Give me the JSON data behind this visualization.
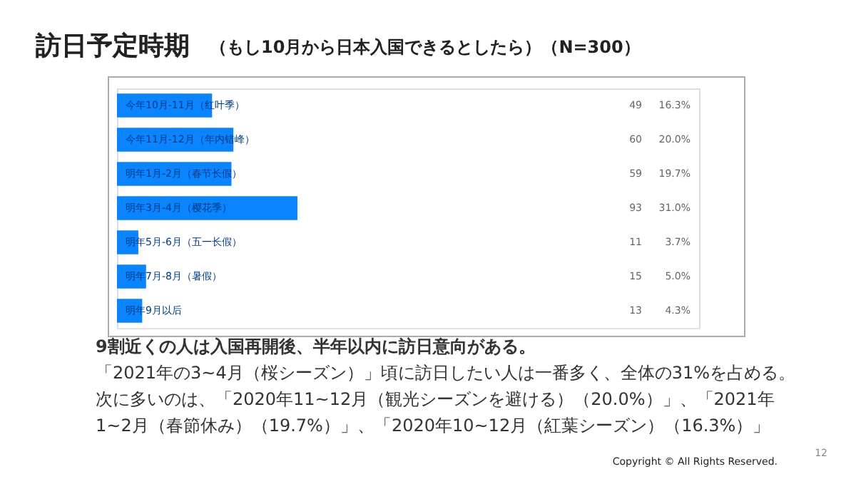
{
  "chart_data": {
    "type": "bar",
    "orientation": "horizontal",
    "title": "訪日予定時期",
    "subtitle": "（もし10月から日本入国できるとしたら）（N=300）",
    "categories": [
      "今年10月-11月（红叶季）",
      "今年11月-12月（年内错峰）",
      "明年1月-2月（春节长假）",
      "明年3月-4月（樱花季）",
      "明年5月-6月（五一长假）",
      "明年7月-8月（暑假）",
      "明年9月以后"
    ],
    "values": [
      49,
      60,
      59,
      93,
      11,
      15,
      13
    ],
    "color": "#0a84ff",
    "xlim": [
      0,
      300
    ],
    "data_labels": true,
    "tick_labels": false,
    "annotations": [
      "16.3%",
      "20.0%",
      "19.7%",
      "31.0%",
      "3.7%",
      "5.0%",
      "4.3%",
      "9割近くの人は入国再開後、半年以内に訪日意向がある。",
      "「2021年の3~4月（桜シーズン）」頃に訪日したい人は一番多く、全体の31%を占める。",
      "次に多いのは、「2020年11~12月（観光シーズンを避ける）（20.0%）」、「2021年",
      "1~2月（春節休み）（19.7%）」、「2020年10~12月（紅葉シーズン）（16.3%）」",
      "Copyright © All Rights Reserved.",
      "12"
    ]
  }
}
